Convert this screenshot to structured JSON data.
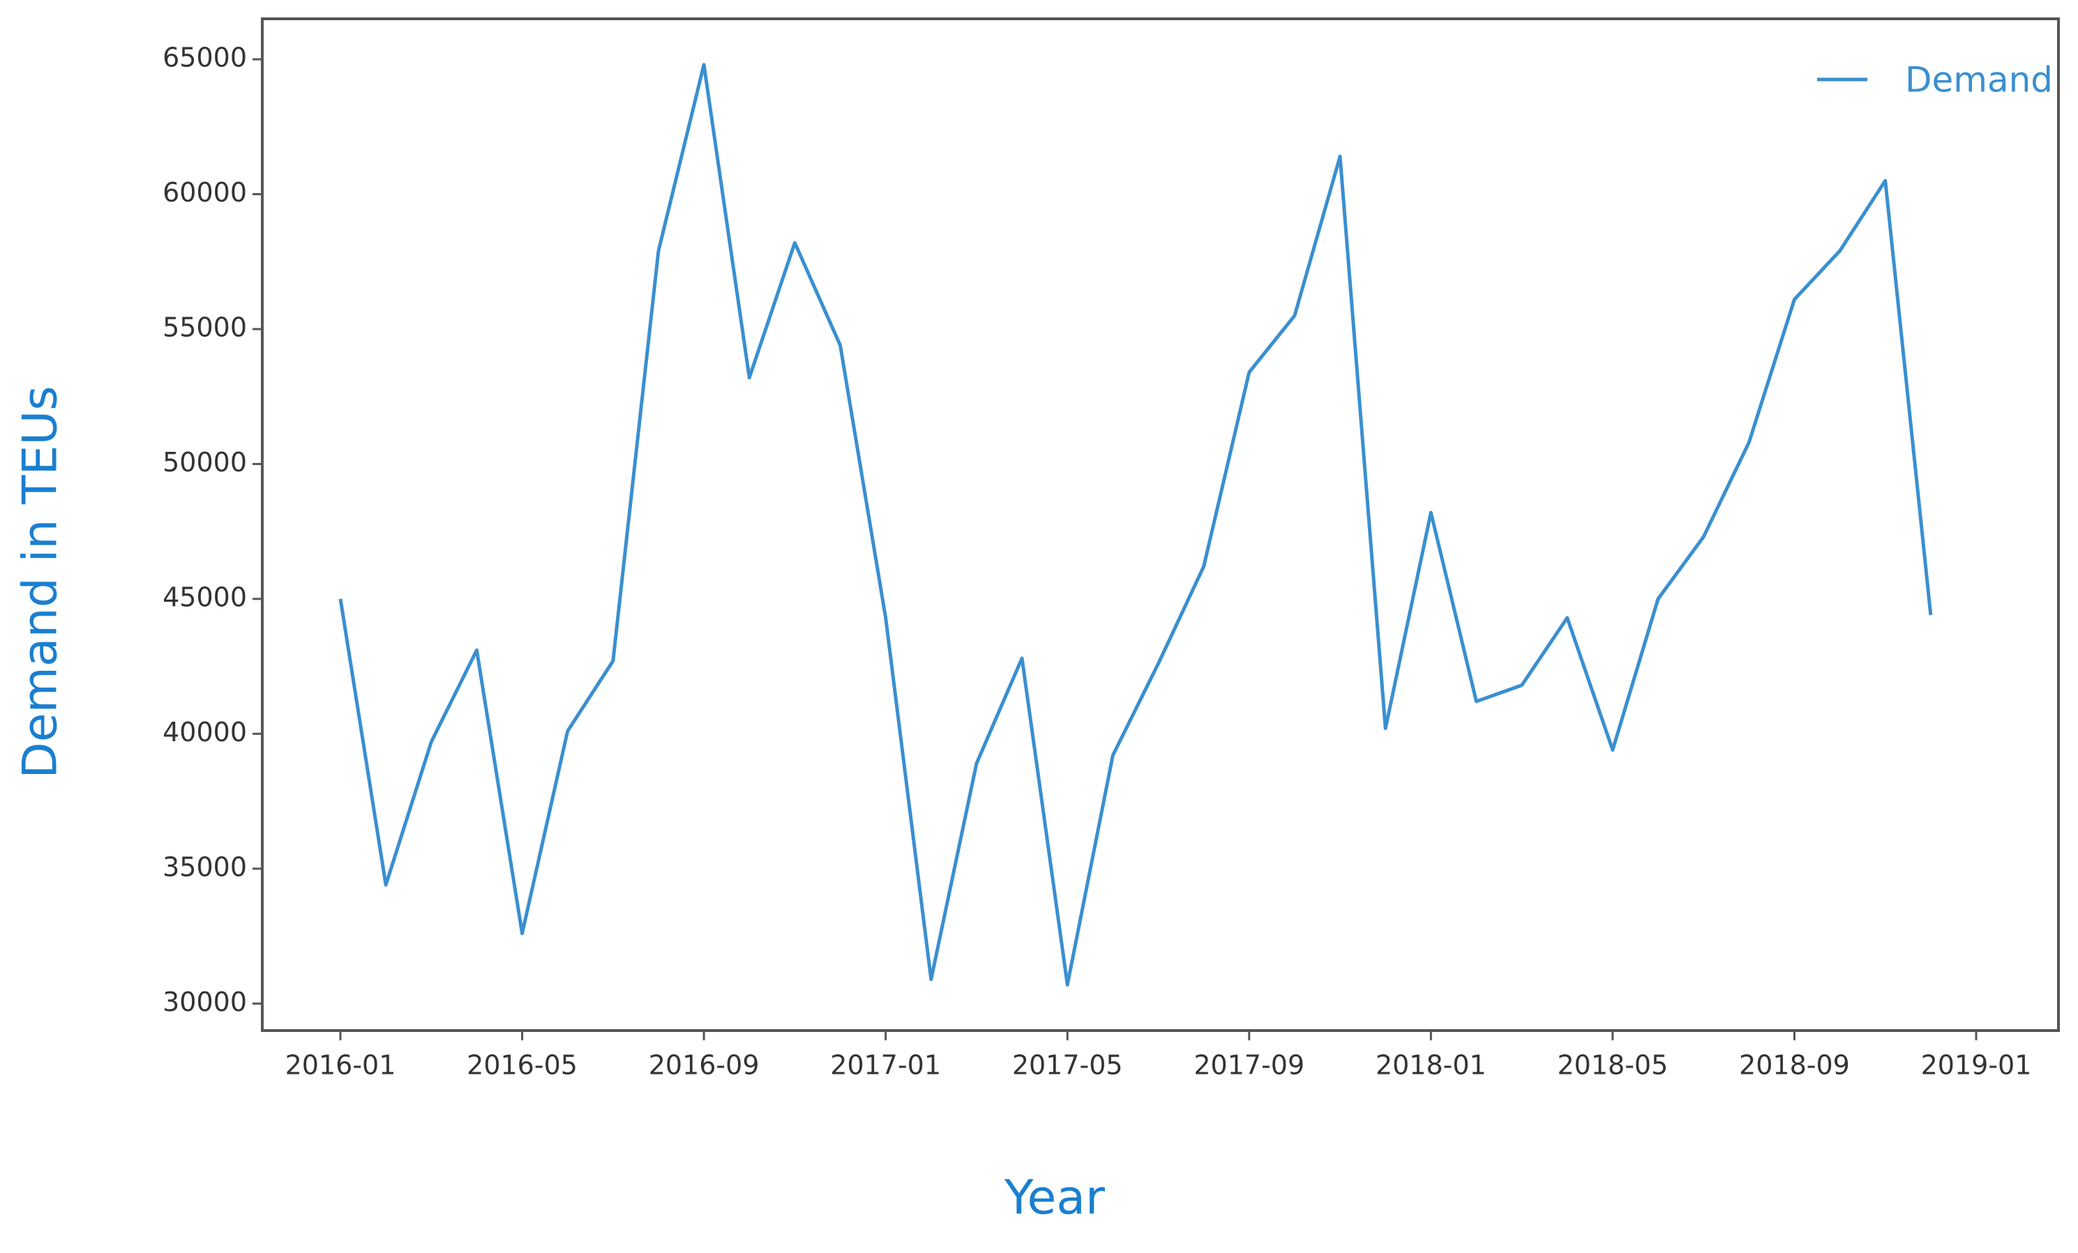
{
  "chart_data": {
    "type": "line",
    "xlabel": "Year",
    "ylabel": "Demand in TEUs",
    "x": [
      "2016-01",
      "2016-02",
      "2016-03",
      "2016-04",
      "2016-05",
      "2016-06",
      "2016-07",
      "2016-08",
      "2016-09",
      "2016-10",
      "2016-11",
      "2016-12",
      "2017-01",
      "2017-02",
      "2017-03",
      "2017-04",
      "2017-05",
      "2017-06",
      "2017-07",
      "2017-08",
      "2017-09",
      "2017-10",
      "2017-11",
      "2017-12",
      "2018-01",
      "2018-02",
      "2018-03",
      "2018-04",
      "2018-05",
      "2018-06",
      "2018-07",
      "2018-08",
      "2018-09",
      "2018-10",
      "2018-11",
      "2018-12"
    ],
    "series": [
      {
        "name": "Demand",
        "color": "#3a8fd0",
        "values": [
          45000,
          34400,
          39700,
          43100,
          32600,
          40100,
          42700,
          57900,
          64800,
          53200,
          58200,
          54400,
          44300,
          30900,
          38900,
          42800,
          30700,
          39200,
          42600,
          46200,
          53400,
          55500,
          61400,
          40200,
          48200,
          41200,
          41800,
          44300,
          39400,
          45000,
          47300,
          50800,
          56100,
          57900,
          60500,
          44400
        ]
      }
    ],
    "xticks": [
      "2016-01",
      "2016-05",
      "2016-09",
      "2017-01",
      "2017-05",
      "2017-09",
      "2018-01",
      "2018-05",
      "2018-09",
      "2019-01"
    ],
    "ylim": [
      29000,
      66500
    ],
    "yticks": [
      30000,
      35000,
      40000,
      45000,
      50000,
      55000,
      60000,
      65000
    ],
    "legend": "upper right",
    "grid": false
  }
}
